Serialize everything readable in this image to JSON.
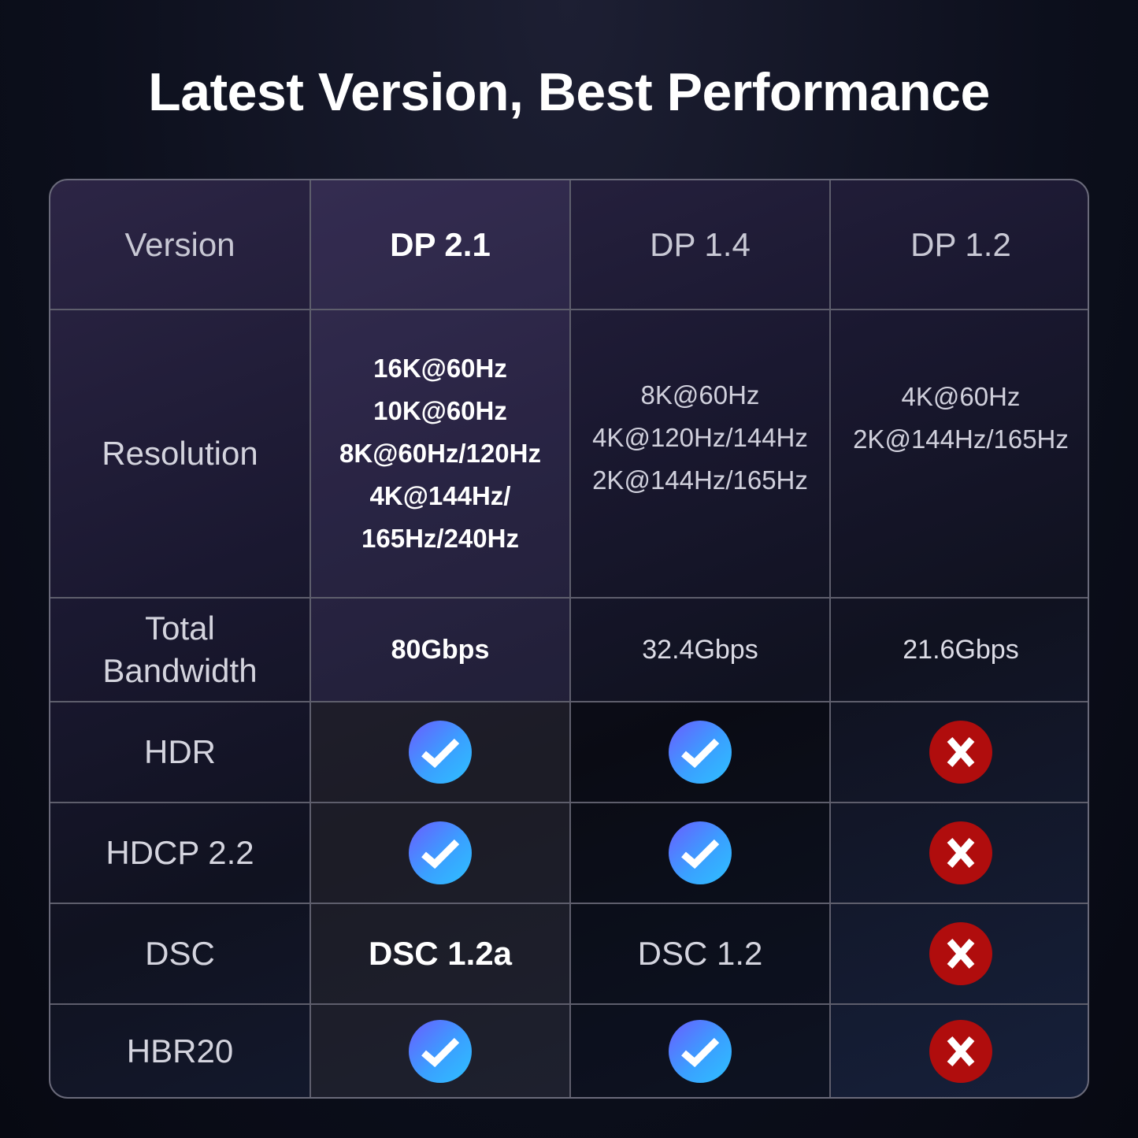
{
  "title": "Latest Version, Best Performance",
  "colors": {
    "check": "#3aa0ff",
    "cross": "#b00d0d"
  },
  "table": {
    "headers": [
      "Version",
      "DP 2.1",
      "DP 1.4",
      "DP 1.2"
    ],
    "resolution": {
      "label": "Resolution",
      "dp21": [
        "16K@60Hz",
        "10K@60Hz",
        "8K@60Hz/120Hz",
        "4K@144Hz/",
        "165Hz/240Hz"
      ],
      "dp14": [
        "8K@60Hz",
        "4K@120Hz/144Hz",
        "2K@144Hz/165Hz"
      ],
      "dp12": [
        "4K@60Hz",
        "2K@144Hz/165Hz"
      ]
    },
    "bandwidth": {
      "label_line1": "Total",
      "label_line2": "Bandwidth",
      "dp21": "80Gbps",
      "dp14": "32.4Gbps",
      "dp12": "21.6Gbps"
    },
    "hdr": {
      "label": "HDR",
      "dp21": "check-icon",
      "dp14": "check-icon",
      "dp12": "cross-icon"
    },
    "hdcp": {
      "label": "HDCP 2.2",
      "dp21": "check-icon",
      "dp14": "check-icon",
      "dp12": "cross-icon"
    },
    "dsc": {
      "label": "DSC",
      "dp21": "DSC 1.2a",
      "dp14": "DSC 1.2",
      "dp12": "cross-icon"
    },
    "hbr20": {
      "label": "HBR20",
      "dp21": "check-icon",
      "dp14": "check-icon",
      "dp12": "cross-icon"
    }
  }
}
